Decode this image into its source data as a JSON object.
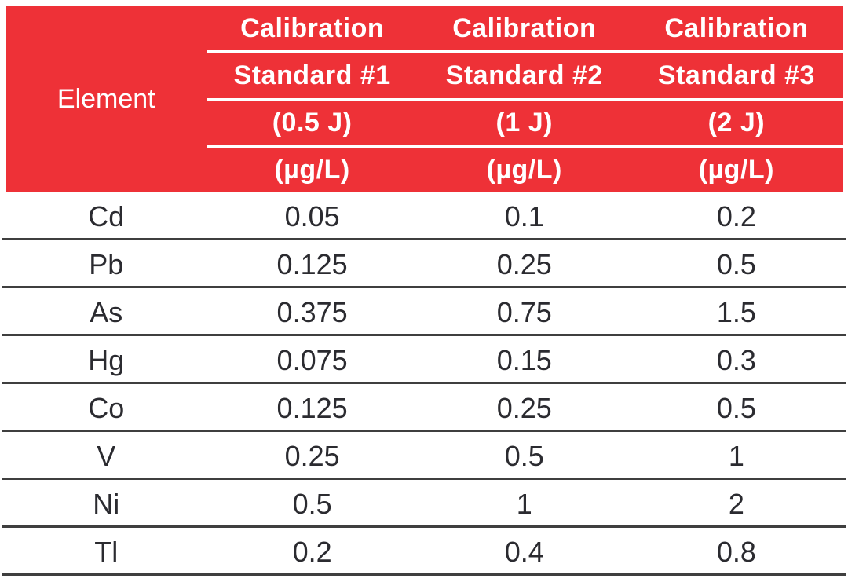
{
  "colors": {
    "header_bg": "#EE3137",
    "header_text": "#FFFFFF",
    "body_text": "#2B2B30",
    "rule": "#3F3F3F"
  },
  "header": {
    "element_label": "Element",
    "standards": [
      {
        "title": "Calibration",
        "subtitle": "Standard #1",
        "energy": "(0.5 J)",
        "unit": "(µg/L)"
      },
      {
        "title": "Calibration",
        "subtitle": "Standard #2",
        "energy": "(1 J)",
        "unit": "(µg/L)"
      },
      {
        "title": "Calibration",
        "subtitle": "Standard #3",
        "energy": "(2 J)",
        "unit": "(µg/L)"
      }
    ]
  },
  "rows": [
    {
      "element": "Cd",
      "values": [
        "0.05",
        "0.1",
        "0.2"
      ]
    },
    {
      "element": "Pb",
      "values": [
        "0.125",
        "0.25",
        "0.5"
      ]
    },
    {
      "element": "As",
      "values": [
        "0.375",
        "0.75",
        "1.5"
      ]
    },
    {
      "element": "Hg",
      "values": [
        "0.075",
        "0.15",
        "0.3"
      ]
    },
    {
      "element": "Co",
      "values": [
        "0.125",
        "0.25",
        "0.5"
      ]
    },
    {
      "element": "V",
      "values": [
        "0.25",
        "0.5",
        "1"
      ]
    },
    {
      "element": "Ni",
      "values": [
        "0.5",
        "1",
        "2"
      ]
    },
    {
      "element": "Tl",
      "values": [
        "0.2",
        "0.4",
        "0.8"
      ]
    }
  ],
  "chart_data": {
    "type": "table",
    "columns": [
      "Element",
      "Calibration Standard #1 (0.5 J) (µg/L)",
      "Calibration Standard #2 (1 J) (µg/L)",
      "Calibration Standard #3 (2 J) (µg/L)"
    ],
    "rows": [
      [
        "Cd",
        0.05,
        0.1,
        0.2
      ],
      [
        "Pb",
        0.125,
        0.25,
        0.5
      ],
      [
        "As",
        0.375,
        0.75,
        1.5
      ],
      [
        "Hg",
        0.075,
        0.15,
        0.3
      ],
      [
        "Co",
        0.125,
        0.25,
        0.5
      ],
      [
        "V",
        0.25,
        0.5,
        1
      ],
      [
        "Ni",
        0.5,
        1,
        2
      ],
      [
        "Tl",
        0.2,
        0.4,
        0.8
      ]
    ],
    "layout": {
      "header_rows": 4,
      "grid": "horizontal-rules-only"
    }
  }
}
